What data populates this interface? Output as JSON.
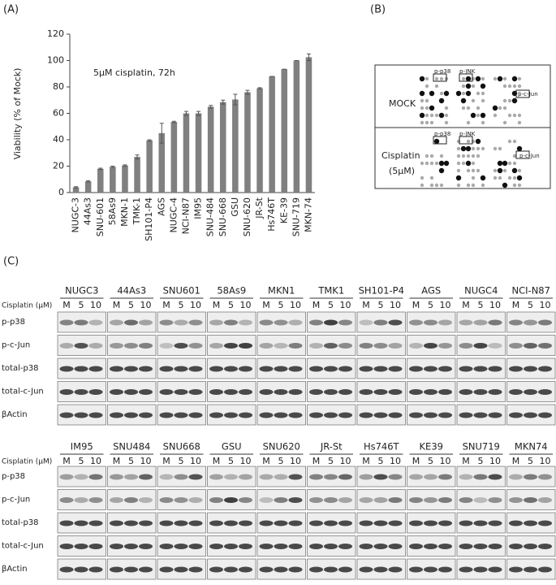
{
  "chart_data": {
    "type": "bar",
    "panel": "(A)",
    "ylabel": "Viability (% of Mock)",
    "annotation": "5μM cisplatin, 72h",
    "categories": [
      "NUGC-3",
      "44As3",
      "SNU-601",
      "58As9",
      "MKN-1",
      "TMK-1",
      "SH101-P4",
      "AGS",
      "NUGC-4",
      "NCI-N87",
      "IM95",
      "SNU-484",
      "SNU-668",
      "GSU",
      "SNU-620",
      "JR-St",
      "Hs746T",
      "KE-39",
      "SNU-719",
      "MKN-74"
    ],
    "values": [
      4,
      8.5,
      18,
      19.5,
      20.5,
      27,
      39.5,
      45,
      53.5,
      60,
      60,
      65,
      68.5,
      70.5,
      76,
      79,
      88,
      93.5,
      100,
      102.5
    ],
    "errors": [
      0.5,
      0.5,
      0.5,
      0.5,
      0.5,
      1.5,
      0.5,
      7.5,
      0.5,
      1.5,
      1.5,
      1,
      1.5,
      4,
      1.5,
      0.5,
      0,
      0,
      0,
      2.5
    ],
    "color": "#808080",
    "ylim": [
      0,
      120
    ],
    "yticks": [
      0,
      20,
      40,
      60,
      80,
      100,
      120
    ]
  },
  "panel_b": {
    "panel": "(B)",
    "mock": "MOCK",
    "cisplatin": "Cisplatin",
    "dose": "(5μM)",
    "p38": "p-p38",
    "jnk": "p-JNK",
    "cjun": "p-c-Jun"
  },
  "panel_c": {
    "panel": "(C)",
    "treatment": "Cisplatin (μM)",
    "lanes": [
      "M",
      "5",
      "10"
    ],
    "rows": [
      "p-p38",
      "p-c-Jun",
      "total-p38",
      "total-c-Jun",
      "βActin"
    ],
    "top": [
      "NUGC3",
      "44As3",
      "SNU601",
      "58As9",
      "MKN1",
      "TMK1",
      "SH101-P4",
      "AGS",
      "NUGC4",
      "NCI-N87"
    ],
    "bottom": [
      "IM95",
      "SNU484",
      "SNU668",
      "GSU",
      "SNU620",
      "JR-St",
      "Hs746T",
      "KE39",
      "SNU719",
      "MKN74"
    ]
  }
}
